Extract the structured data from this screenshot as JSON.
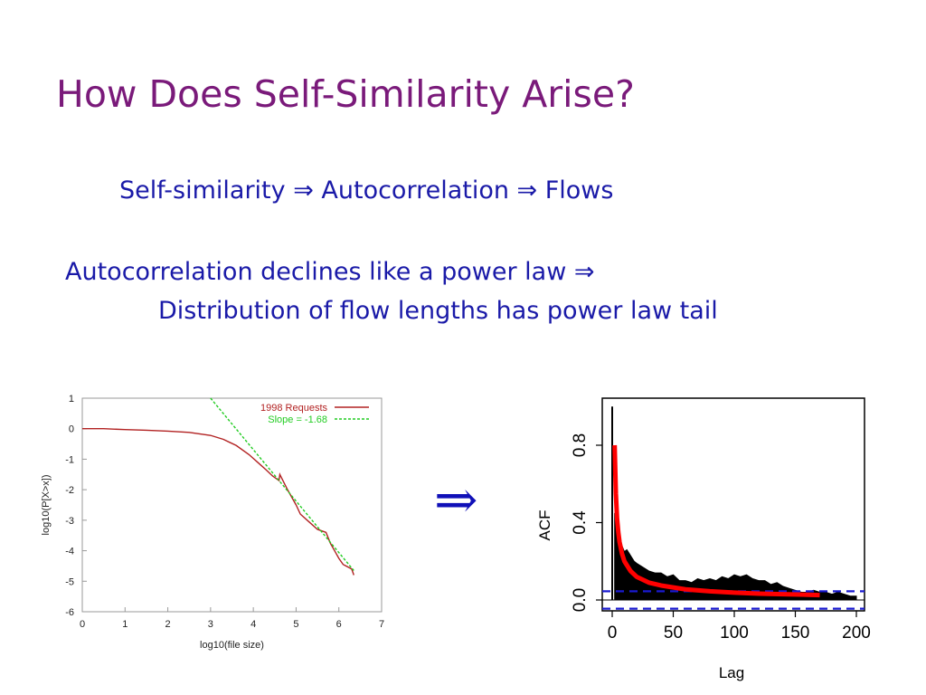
{
  "slide": {
    "title": "How Does Self-Similarity Arise?",
    "line1": "Self-similarity ⇒ Autocorrelation ⇒ Flows",
    "line2": "Autocorrelation declines like a power law ⇒",
    "line3": "Distribution of flow lengths has power law tail",
    "arrow": "⇒"
  },
  "colors": {
    "title": "#7a1a7a",
    "text": "#1a1aa8",
    "requests": "#b22222",
    "slope": "#22cc22",
    "acf_fit": "#ff0000",
    "ci": "#1a1ad0"
  },
  "chart_data": [
    {
      "type": "line",
      "xlabel": "log10(file size)",
      "ylabel": "log10(P[X>x])",
      "xlim": [
        0,
        7
      ],
      "ylim": [
        -6,
        1
      ],
      "xticks": [
        "0",
        "1",
        "2",
        "3",
        "4",
        "5",
        "6",
        "7"
      ],
      "yticks": [
        "1",
        "0",
        "-1",
        "-2",
        "-3",
        "-4",
        "-5",
        "-6"
      ],
      "legend_placement": "top-right",
      "grid": false,
      "series": [
        {
          "name": "1998 Requests",
          "x": [
            0,
            0.5,
            1.0,
            1.5,
            2.0,
            2.5,
            3.0,
            3.3,
            3.6,
            3.9,
            4.1,
            4.3,
            4.45,
            4.6,
            4.62,
            4.8,
            5.0,
            5.1,
            5.3,
            5.5,
            5.7,
            5.8,
            5.9,
            6.0,
            6.1,
            6.3,
            6.35
          ],
          "y": [
            0,
            0,
            -0.03,
            -0.05,
            -0.08,
            -0.12,
            -0.22,
            -0.35,
            -0.55,
            -0.85,
            -1.1,
            -1.35,
            -1.55,
            -1.7,
            -1.5,
            -2.0,
            -2.5,
            -2.8,
            -3.05,
            -3.3,
            -3.4,
            -3.75,
            -4.0,
            -4.25,
            -4.45,
            -4.6,
            -4.8
          ]
        },
        {
          "name": "Slope = -1.68",
          "x": [
            3.0,
            6.35
          ],
          "y": [
            1.0,
            -4.65
          ]
        }
      ]
    },
    {
      "type": "bar",
      "xlabel": "Lag",
      "ylabel": "ACF",
      "xlim": [
        0,
        200
      ],
      "ylim": [
        0,
        1
      ],
      "xticks": [
        "0",
        "50",
        "100",
        "150",
        "200"
      ],
      "yticks": [
        "0.0",
        "0.4",
        "0.8"
      ],
      "grid": false,
      "acf_lags": [
        0,
        2,
        4,
        6,
        8,
        10,
        12,
        14,
        16,
        18,
        20,
        25,
        30,
        35,
        40,
        45,
        50,
        55,
        60,
        65,
        70,
        75,
        80,
        85,
        90,
        95,
        100,
        105,
        110,
        115,
        120,
        125,
        130,
        135,
        140,
        145,
        150,
        155,
        160,
        165,
        170,
        175,
        180,
        185,
        190,
        195,
        200
      ],
      "acf_values": [
        1.0,
        0.45,
        0.37,
        0.3,
        0.28,
        0.25,
        0.26,
        0.24,
        0.22,
        0.2,
        0.19,
        0.17,
        0.15,
        0.14,
        0.14,
        0.12,
        0.13,
        0.1,
        0.1,
        0.09,
        0.11,
        0.1,
        0.11,
        0.1,
        0.12,
        0.11,
        0.13,
        0.12,
        0.13,
        0.11,
        0.1,
        0.1,
        0.08,
        0.09,
        0.07,
        0.06,
        0.05,
        0.04,
        0.04,
        0.05,
        0.04,
        0.04,
        0.03,
        0.04,
        0.03,
        0.02,
        0.02
      ],
      "fit_curve": {
        "x": [
          2,
          3,
          4,
          5,
          6,
          8,
          10,
          15,
          20,
          30,
          40,
          50,
          60,
          80,
          100,
          120,
          140,
          160,
          170
        ],
        "y": [
          0.8,
          0.55,
          0.42,
          0.35,
          0.3,
          0.24,
          0.2,
          0.15,
          0.12,
          0.09,
          0.075,
          0.065,
          0.055,
          0.045,
          0.038,
          0.033,
          0.03,
          0.027,
          0.025
        ]
      },
      "confidence_bounds": [
        0.045,
        -0.045
      ]
    }
  ]
}
